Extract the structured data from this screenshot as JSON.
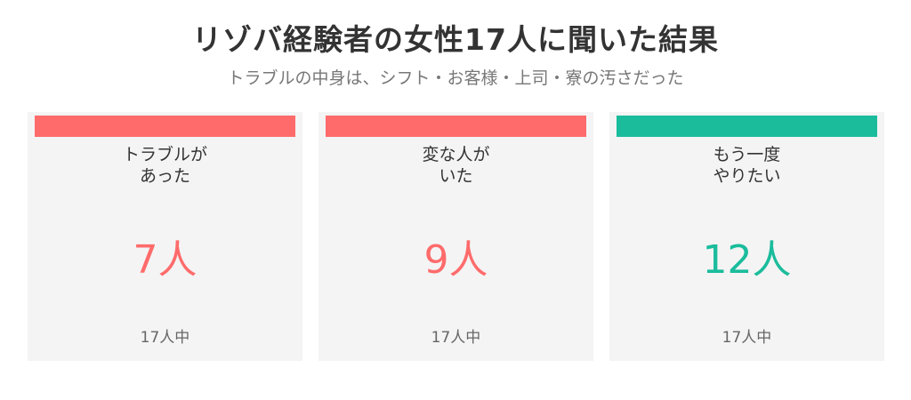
{
  "header": {
    "title": "リゾバ経験者の女性17人に聞いた結果",
    "subtitle": "トラブルの中身は、シフト・お客様・上司・寮の汚さだった"
  },
  "cards": [
    {
      "label_lines": [
        "トラブルが",
        "あった"
      ],
      "value": "7人",
      "total": "17人中",
      "color": "#ff6b6b"
    },
    {
      "label_lines": [
        "変な人が",
        "いた"
      ],
      "value": "9人",
      "total": "17人中",
      "color": "#ff6b6b"
    },
    {
      "label_lines": [
        "もう一度",
        "やりたい"
      ],
      "value": "12人",
      "total": "17人中",
      "color": "#1abc9c"
    }
  ]
}
